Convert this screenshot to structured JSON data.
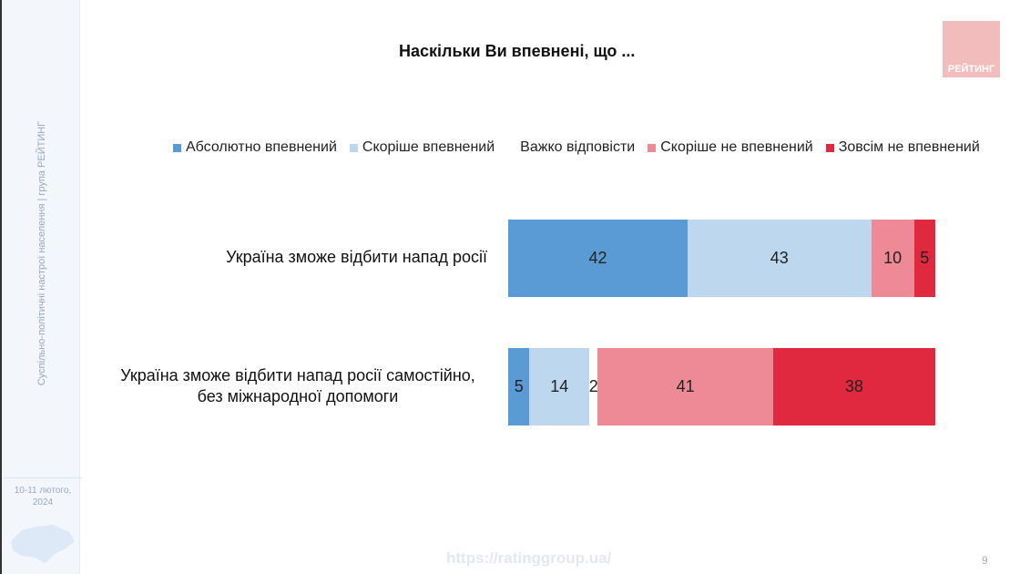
{
  "sidebar": {
    "vertical_text": "Суспільно-політичні настрої населення | група РЕЙТИНГ",
    "date": "10-11 лютого, 2024"
  },
  "logo_text": "РЕЙТИНГ",
  "footer": {
    "url": "https://ratinggroup.ua/",
    "page": "9"
  },
  "chart_data": {
    "type": "bar",
    "orientation": "horizontal",
    "stacked": true,
    "title": "Наскільки Ви впевнені, що ...",
    "categories": [
      "Україна зможе відбити напад росії",
      "Україна зможе відбити напад росії самостійно, без міжнародної допомоги"
    ],
    "series": [
      {
        "name": "Абсолютно впевнений",
        "color": "#5b9bd5",
        "values": [
          42,
          5
        ]
      },
      {
        "name": "Скоріше впевнений",
        "color": "#bdd7ee",
        "values": [
          43,
          14
        ]
      },
      {
        "name": "Важко відповісти",
        "color": "#ffffff",
        "values": [
          0,
          2
        ]
      },
      {
        "name": "Скоріше не впевнений",
        "color": "#ee8a96",
        "values": [
          10,
          41
        ]
      },
      {
        "name": "Зовсім не впевнений",
        "color": "#e0283f",
        "values": [
          5,
          38
        ]
      }
    ],
    "xlim": [
      0,
      100
    ],
    "legend": "top"
  }
}
